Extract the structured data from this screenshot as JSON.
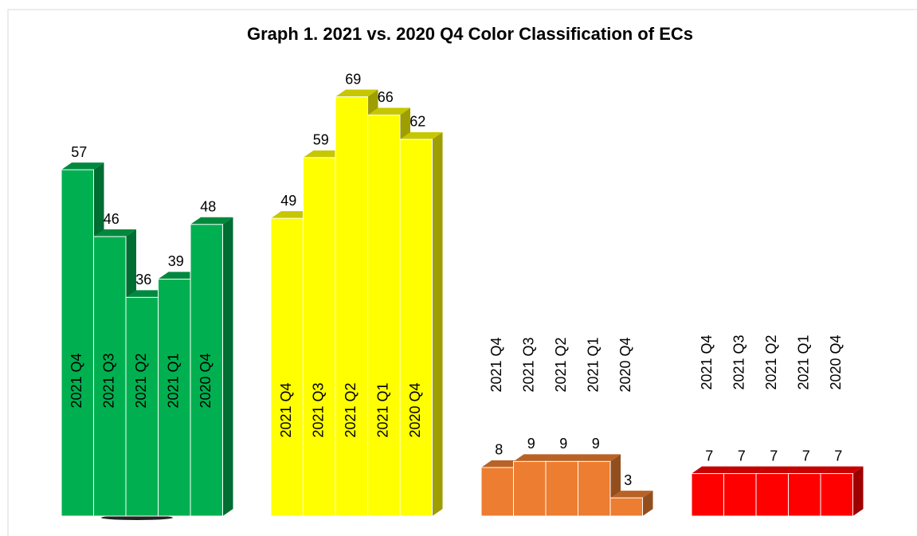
{
  "chart_data": {
    "type": "bar3d",
    "title": "Graph 1. 2021 vs. 2020 Q4 Color Classification of ECs",
    "categories": [
      "2021 Q4",
      "2021 Q3",
      "2021 Q2",
      "2021 Q1",
      "2020 Q4"
    ],
    "series": [
      {
        "color": "#00b050",
        "values": [
          57,
          46,
          36,
          39,
          48
        ]
      },
      {
        "color": "#ffff00",
        "values": [
          49,
          59,
          69,
          66,
          62
        ]
      },
      {
        "color": "#ed7d31",
        "values": [
          8,
          9,
          9,
          9,
          3
        ]
      },
      {
        "color": "#ff0000",
        "values": [
          7,
          7,
          7,
          7,
          7
        ]
      }
    ]
  }
}
